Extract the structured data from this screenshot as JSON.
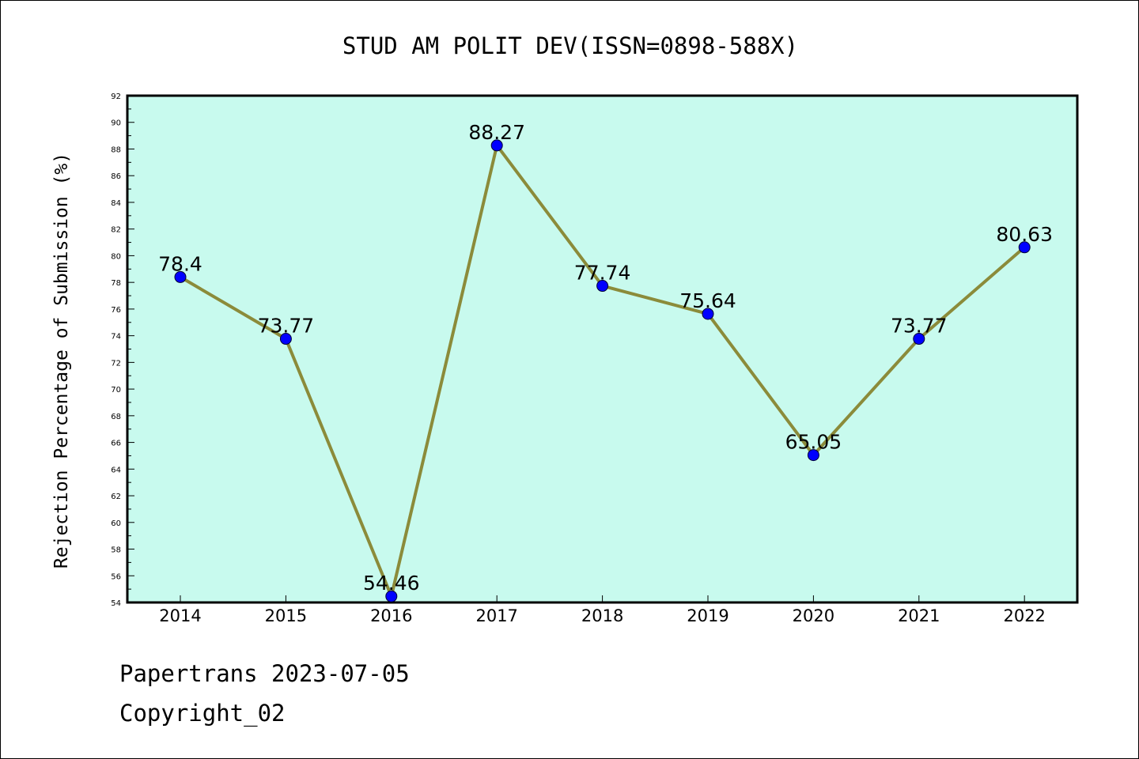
{
  "chart_data": {
    "type": "line",
    "title": "STUD AM POLIT DEV(ISSN=0898-588X)",
    "xlabel": "",
    "ylabel": "Rejection Percentage of Submission (%)",
    "categories": [
      "2014",
      "2015",
      "2016",
      "2017",
      "2018",
      "2019",
      "2020",
      "2021",
      "2022"
    ],
    "series": [
      {
        "values": [
          78.4,
          73.77,
          54.46,
          88.27,
          77.74,
          75.64,
          65.05,
          73.77,
          80.63
        ],
        "labels": [
          "78.4",
          "73.77",
          "54.46",
          "88.27",
          "77.74",
          "75.64",
          "65.05",
          "73.77",
          "80.63"
        ],
        "line_color": "#8b8b3a",
        "marker_color": "#0000ff"
      }
    ],
    "ylim": [
      54,
      92
    ],
    "ytick_step": 2,
    "grid": false,
    "plot_background": "#c8faee"
  },
  "footer": {
    "source": "Papertrans 2023-07-05",
    "copyright": "Copyright_02"
  }
}
